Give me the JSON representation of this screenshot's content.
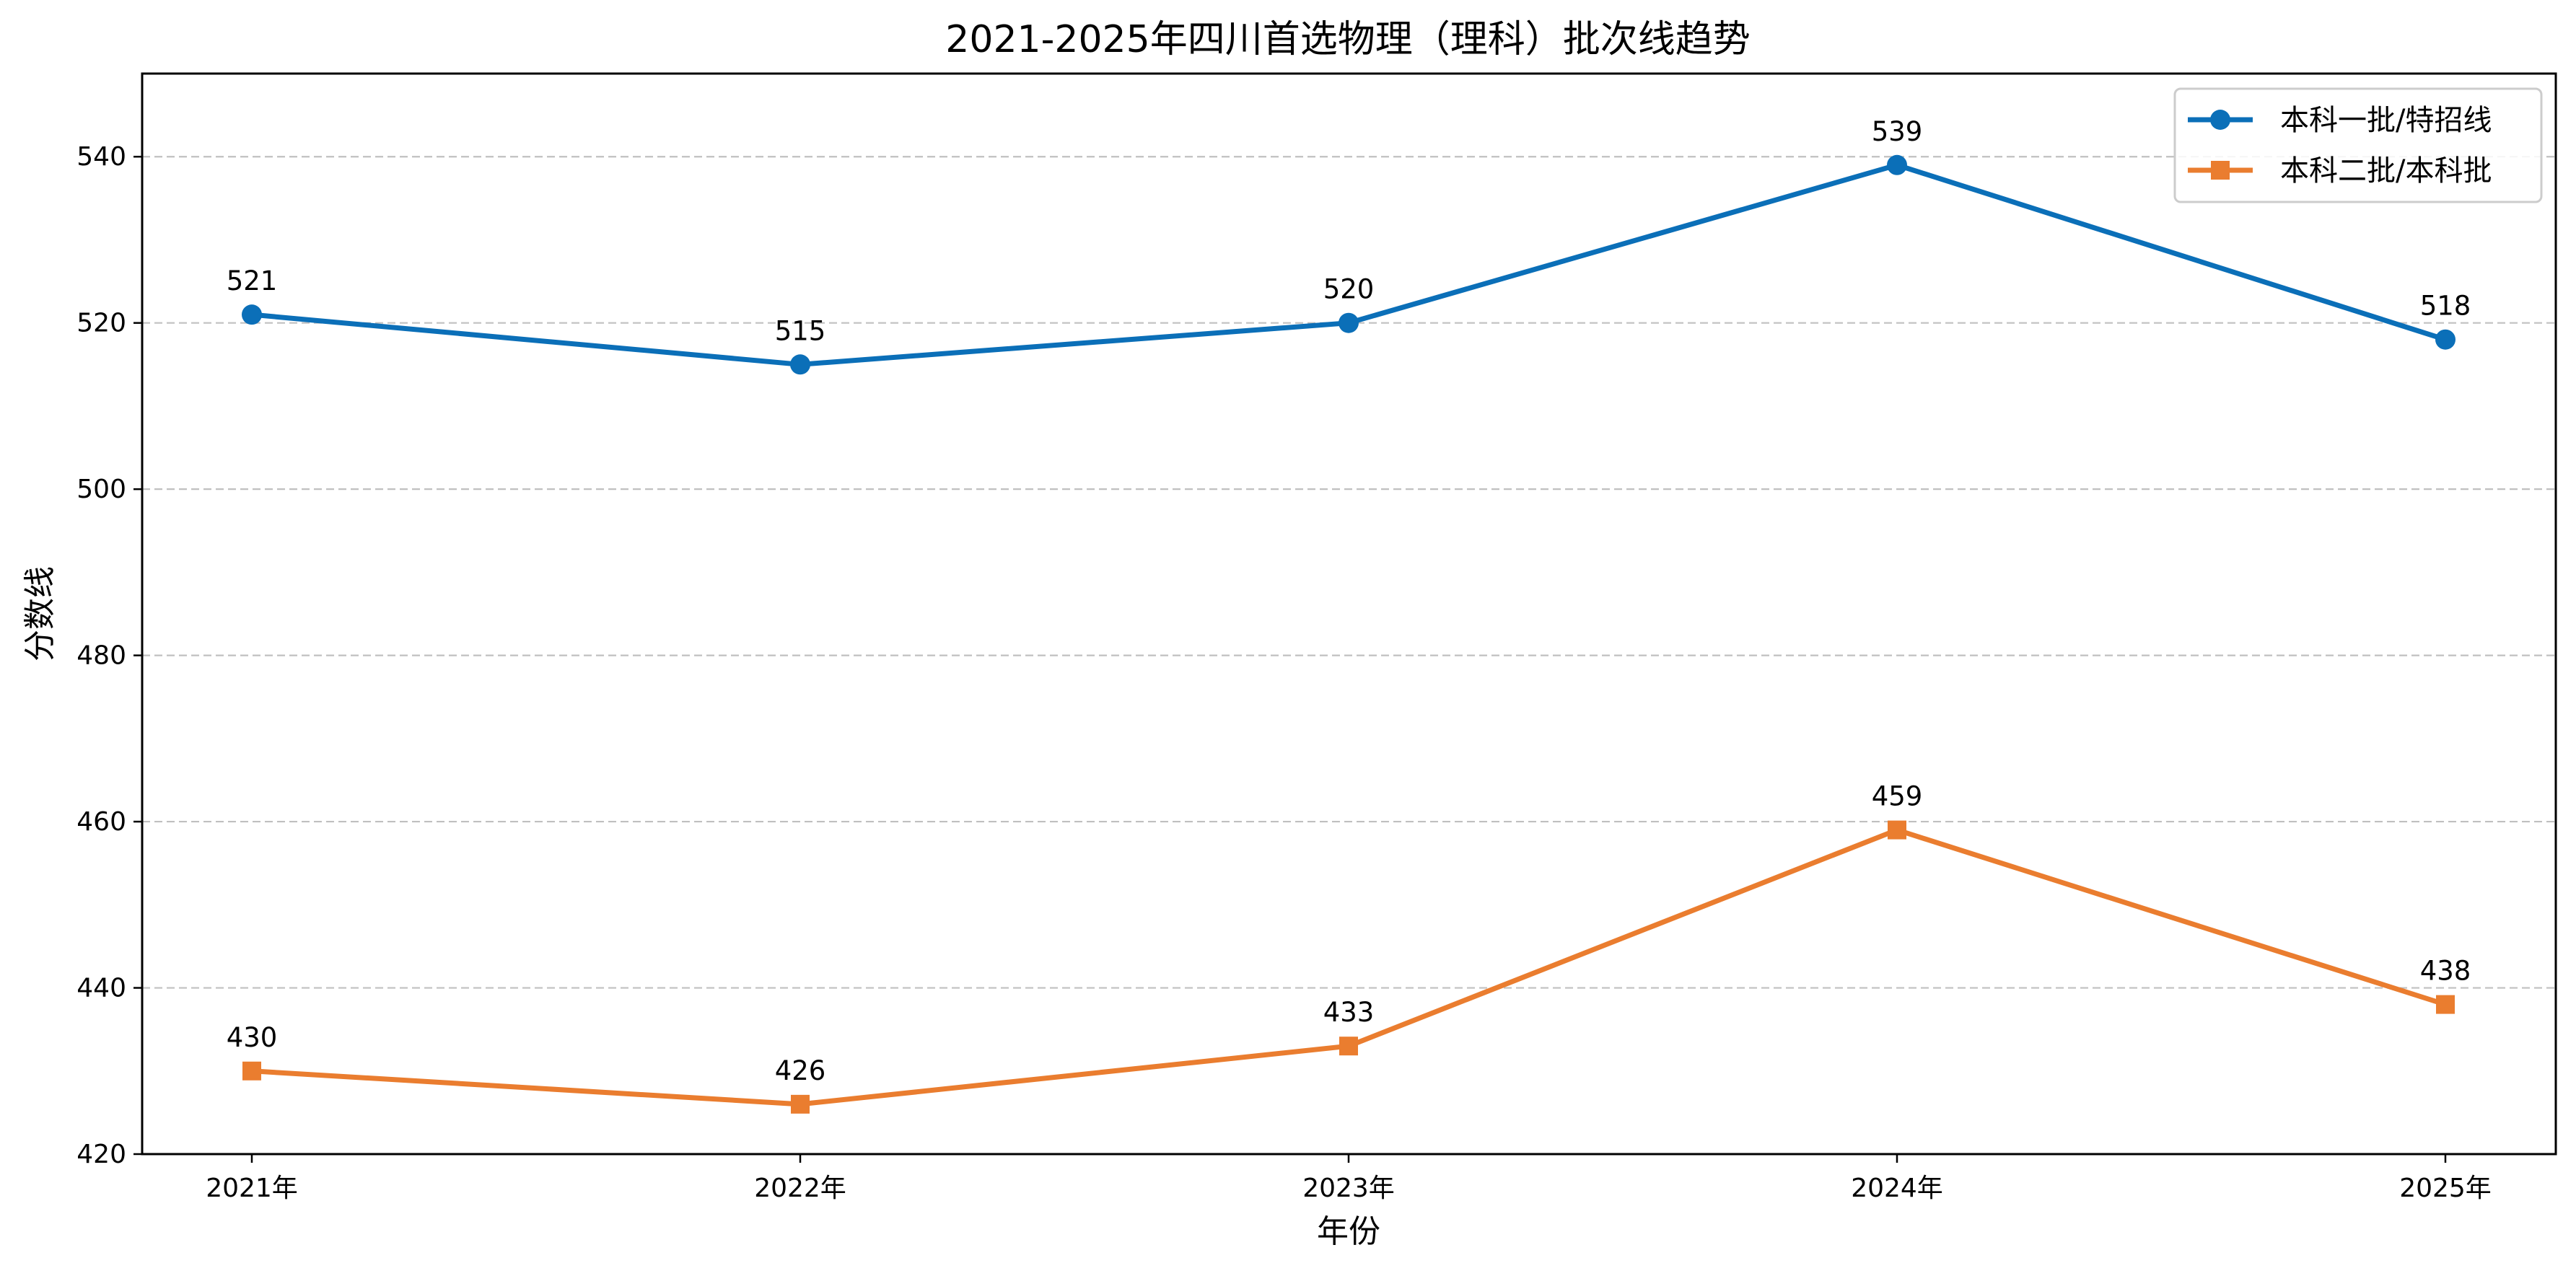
{
  "chart_data": {
    "type": "line",
    "title": "2021-2025年四川首选物理（理科）批次线趋势",
    "xlabel": "年份",
    "ylabel": "分数线",
    "categories": [
      "2021年",
      "2022年",
      "2023年",
      "2024年",
      "2025年"
    ],
    "ylim": [
      420,
      550
    ],
    "yticks": [
      420,
      440,
      460,
      480,
      500,
      520,
      540
    ],
    "grid": "horizontal dashed",
    "legend_position": "top-right",
    "series": [
      {
        "name": "本科一批/特招线",
        "values": [
          521,
          515,
          520,
          539,
          518
        ],
        "color": "#0b6fb8",
        "marker": "circle"
      },
      {
        "name": "本科二批/本科批",
        "values": [
          430,
          426,
          433,
          459,
          438
        ],
        "color": "#ea7d2f",
        "marker": "square"
      }
    ]
  }
}
